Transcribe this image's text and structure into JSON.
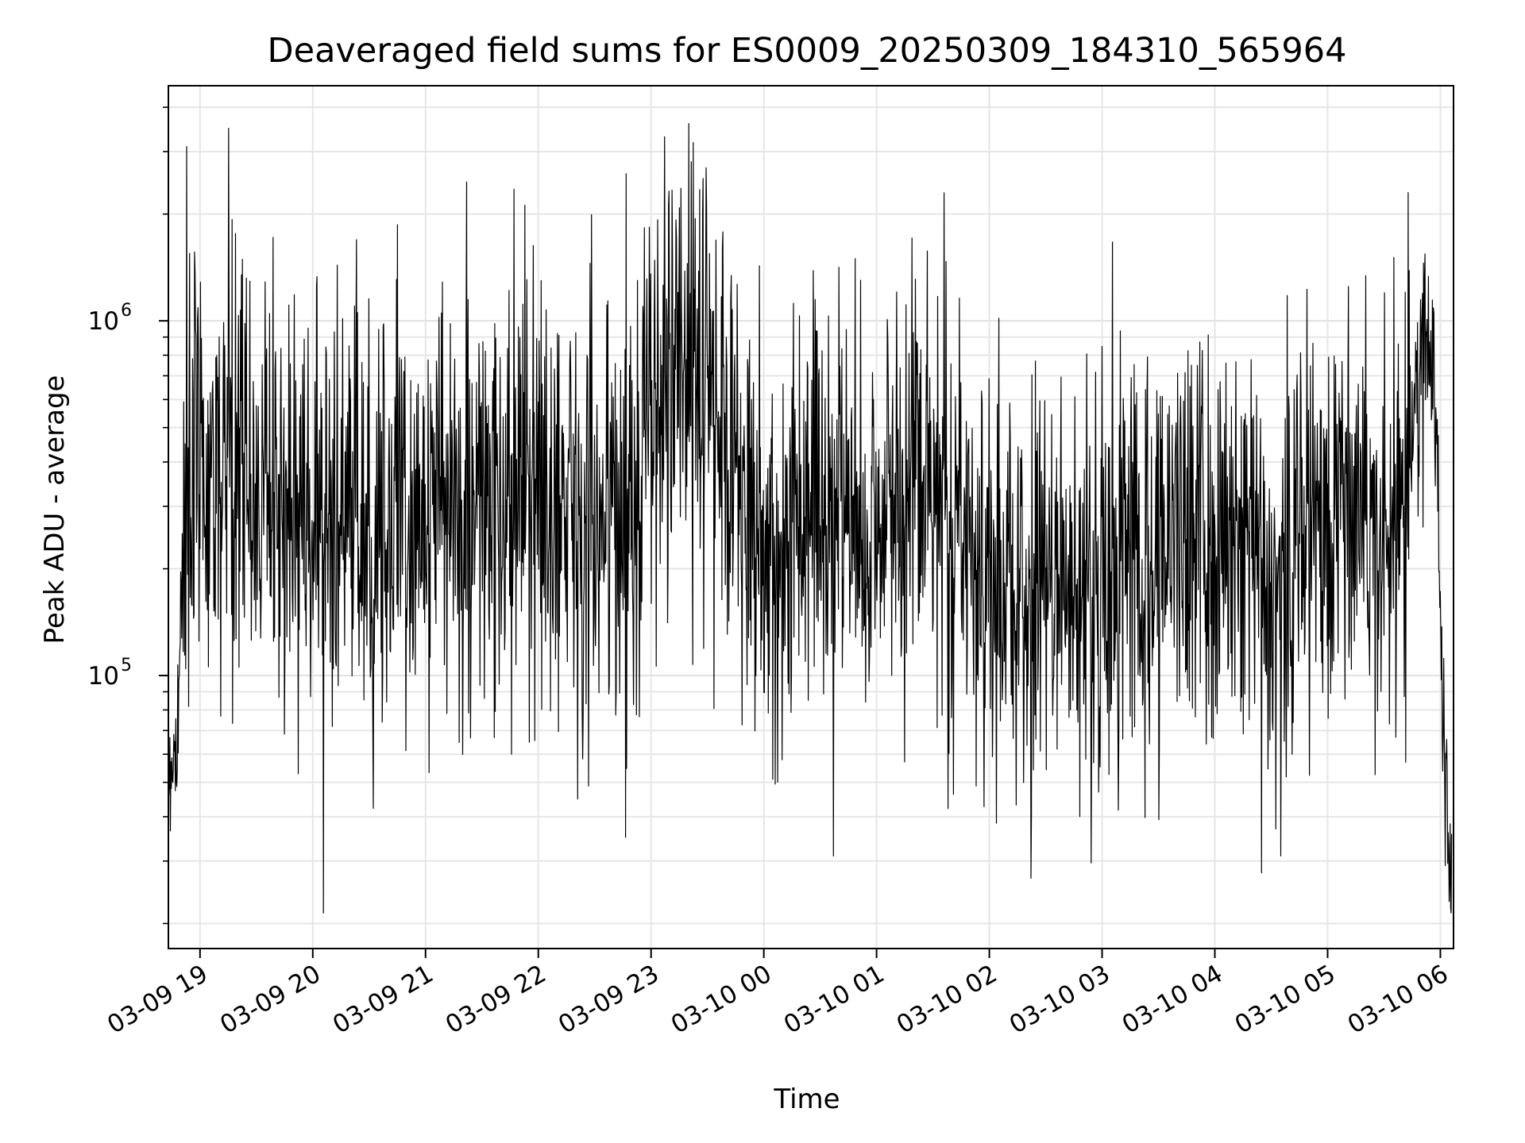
{
  "chart_data": {
    "type": "line",
    "title": "Deaveraged field sums for ES0009_20250309_184310_565964",
    "xlabel": "Time",
    "ylabel": "Peak ADU - average",
    "x_start": "2025-03-09 18:43:10",
    "x_end": "2025-03-10 06:06:00",
    "xlim": [
      "2025-03-09 18:43:10",
      "2025-03-10 06:07:00"
    ],
    "ylim": [
      17000,
      4600000
    ],
    "yscale": "log",
    "grid": true,
    "line_color": "#000000",
    "x_ticks": [
      {
        "value": "2025-03-09 19:00",
        "label": "03-09 19"
      },
      {
        "value": "2025-03-09 20:00",
        "label": "03-09 20"
      },
      {
        "value": "2025-03-09 21:00",
        "label": "03-09 21"
      },
      {
        "value": "2025-03-09 22:00",
        "label": "03-09 22"
      },
      {
        "value": "2025-03-09 23:00",
        "label": "03-09 23"
      },
      {
        "value": "2025-03-10 00:00",
        "label": "03-10 00"
      },
      {
        "value": "2025-03-10 01:00",
        "label": "03-10 01"
      },
      {
        "value": "2025-03-10 02:00",
        "label": "03-10 02"
      },
      {
        "value": "2025-03-10 03:00",
        "label": "03-10 03"
      },
      {
        "value": "2025-03-10 04:00",
        "label": "03-10 04"
      },
      {
        "value": "2025-03-10 05:00",
        "label": "03-10 05"
      },
      {
        "value": "2025-03-10 06:00",
        "label": "03-10 06"
      }
    ],
    "y_ticks": [
      {
        "value": 100000,
        "base": "10",
        "exponent": "5"
      },
      {
        "value": 1000000,
        "base": "10",
        "exponent": "6"
      }
    ],
    "envelope": [
      {
        "t": "2025-03-09 18:43",
        "median": 55000,
        "spread": 0.18
      },
      {
        "t": "2025-03-09 18:48",
        "median": 65000,
        "spread": 0.25
      },
      {
        "t": "2025-03-09 18:52",
        "median": 350000,
        "spread": 0.6
      },
      {
        "t": "2025-03-09 19:15",
        "median": 380000,
        "spread": 0.55
      },
      {
        "t": "2025-03-09 19:45",
        "median": 320000,
        "spread": 0.55
      },
      {
        "t": "2025-03-09 20:15",
        "median": 260000,
        "spread": 0.55
      },
      {
        "t": "2025-03-09 20:45",
        "median": 290000,
        "spread": 0.55
      },
      {
        "t": "2025-03-09 21:15",
        "median": 300000,
        "spread": 0.55
      },
      {
        "t": "2025-03-09 21:45",
        "median": 290000,
        "spread": 0.55
      },
      {
        "t": "2025-03-09 22:15",
        "median": 330000,
        "spread": 0.55
      },
      {
        "t": "2025-03-09 22:45",
        "median": 260000,
        "spread": 0.55
      },
      {
        "t": "2025-03-09 23:05",
        "median": 650000,
        "spread": 0.6
      },
      {
        "t": "2025-03-09 23:30",
        "median": 700000,
        "spread": 0.6
      },
      {
        "t": "2025-03-09 23:45",
        "median": 420000,
        "spread": 0.55
      },
      {
        "t": "2025-03-10 00:00",
        "median": 210000,
        "spread": 0.5
      },
      {
        "t": "2025-03-10 00:30",
        "median": 320000,
        "spread": 0.55
      },
      {
        "t": "2025-03-10 01:00",
        "median": 260000,
        "spread": 0.55
      },
      {
        "t": "2025-03-10 01:30",
        "median": 420000,
        "spread": 0.6
      },
      {
        "t": "2025-03-10 01:45",
        "median": 280000,
        "spread": 0.55
      },
      {
        "t": "2025-03-10 02:00",
        "median": 160000,
        "spread": 0.5
      },
      {
        "t": "2025-03-10 02:30",
        "median": 170000,
        "spread": 0.5
      },
      {
        "t": "2025-03-10 03:00",
        "median": 180000,
        "spread": 0.5
      },
      {
        "t": "2025-03-10 03:30",
        "median": 250000,
        "spread": 0.55
      },
      {
        "t": "2025-03-10 04:00",
        "median": 250000,
        "spread": 0.55
      },
      {
        "t": "2025-03-10 04:30",
        "median": 190000,
        "spread": 0.55
      },
      {
        "t": "2025-03-10 05:00",
        "median": 320000,
        "spread": 0.55
      },
      {
        "t": "2025-03-10 05:40",
        "median": 280000,
        "spread": 0.55
      },
      {
        "t": "2025-03-10 05:50",
        "median": 850000,
        "spread": 0.3
      },
      {
        "t": "2025-03-10 05:57",
        "median": 800000,
        "spread": 0.35
      },
      {
        "t": "2025-03-10 06:02",
        "median": 45000,
        "spread": 0.25
      },
      {
        "t": "2025-03-10 06:06",
        "median": 32000,
        "spread": 0.2
      }
    ],
    "notable_points": [
      {
        "t": "2025-03-09 18:53",
        "y": 3100000
      },
      {
        "t": "2025-03-09 23:20",
        "y": 3600000
      },
      {
        "t": "2025-03-10 00:37",
        "y": 31000
      },
      {
        "t": "2025-03-10 04:35",
        "y": 31000
      },
      {
        "t": "2025-03-10 06:05",
        "y": 26000
      }
    ],
    "sample_count": 2600
  }
}
